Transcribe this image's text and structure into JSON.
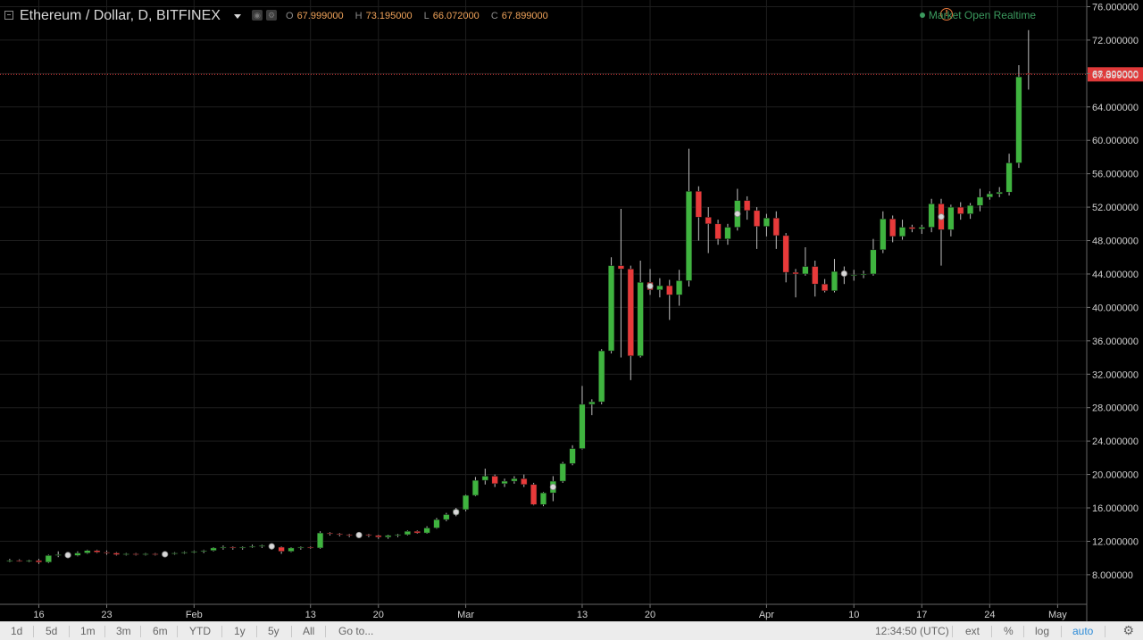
{
  "header": {
    "symbol": "Ethereum / Dollar, D, BITFINEX",
    "ohlc": [
      {
        "key": "O",
        "value": "67.999000"
      },
      {
        "key": "H",
        "value": "73.195000"
      },
      {
        "key": "L",
        "value": "66.072000"
      },
      {
        "key": "C",
        "value": "67.899000"
      }
    ],
    "warning": "!",
    "market_status": "Market Open",
    "realtime": "Realtime"
  },
  "colors": {
    "background": "#000000",
    "up": "#3fb43f",
    "down": "#e83a3a",
    "grid": "#1e1e1e",
    "axis_text": "#d0d0d0",
    "price_line": "#e03a3a",
    "wick": "#bfbfbf"
  },
  "icons": [
    "collapse-icon",
    "camera-icon",
    "settings-icon",
    "warning-icon",
    "gear-icon"
  ],
  "chart_data": {
    "type": "candlestick",
    "y_ticks": [
      "8.000000",
      "12.000000",
      "16.000000",
      "20.000000",
      "24.000000",
      "28.000000",
      "32.000000",
      "36.000000",
      "40.000000",
      "44.000000",
      "48.000000",
      "52.000000",
      "56.000000",
      "60.000000",
      "64.000000",
      "68.000000",
      "72.000000",
      "76.000000"
    ],
    "ylim": [
      4.46,
      76.8
    ],
    "x_ticks": [
      {
        "label": "16",
        "date": "2017-01-16"
      },
      {
        "label": "23",
        "date": "2017-01-23"
      },
      {
        "label": "Feb",
        "date": "2017-02-01"
      },
      {
        "label": "13",
        "date": "2017-02-13"
      },
      {
        "label": "20",
        "date": "2017-02-20"
      },
      {
        "label": "Mar",
        "date": "2017-03-01"
      },
      {
        "label": "13",
        "date": "2017-03-13"
      },
      {
        "label": "20",
        "date": "2017-03-20"
      },
      {
        "label": "Apr",
        "date": "2017-04-01"
      },
      {
        "label": "10",
        "date": "2017-04-10"
      },
      {
        "label": "17",
        "date": "2017-04-17"
      },
      {
        "label": "24",
        "date": "2017-04-24"
      },
      {
        "label": "May",
        "date": "2017-05-01"
      }
    ],
    "xlim": [
      "2017-01-12",
      "2017-05-04"
    ],
    "last_price": {
      "value": 67.899,
      "label": "67.899000"
    },
    "series": [
      {
        "date": "2017-01-13",
        "o": 9.6,
        "h": 9.9,
        "l": 9.5,
        "c": 9.7
      },
      {
        "date": "2017-01-14",
        "o": 9.7,
        "h": 9.85,
        "l": 9.55,
        "c": 9.6
      },
      {
        "date": "2017-01-15",
        "o": 9.6,
        "h": 9.8,
        "l": 9.5,
        "c": 9.7
      },
      {
        "date": "2017-01-16",
        "o": 9.7,
        "h": 9.9,
        "l": 9.3,
        "c": 9.5
      },
      {
        "date": "2017-01-17",
        "o": 9.5,
        "h": 10.4,
        "l": 9.4,
        "c": 10.3
      },
      {
        "date": "2017-01-18",
        "o": 10.3,
        "h": 10.8,
        "l": 10.1,
        "c": 10.4
      },
      {
        "date": "2017-01-19",
        "o": 10.4,
        "h": 10.6,
        "l": 10.1,
        "c": 10.3
      },
      {
        "date": "2017-01-20",
        "o": 10.3,
        "h": 10.8,
        "l": 10.2,
        "c": 10.6
      },
      {
        "date": "2017-01-21",
        "o": 10.6,
        "h": 11.0,
        "l": 10.5,
        "c": 10.9
      },
      {
        "date": "2017-01-22",
        "o": 10.9,
        "h": 11.0,
        "l": 10.6,
        "c": 10.7
      },
      {
        "date": "2017-01-23",
        "o": 10.7,
        "h": 10.9,
        "l": 10.4,
        "c": 10.6
      },
      {
        "date": "2017-01-24",
        "o": 10.6,
        "h": 10.7,
        "l": 10.3,
        "c": 10.4
      },
      {
        "date": "2017-01-25",
        "o": 10.4,
        "h": 10.6,
        "l": 10.3,
        "c": 10.5
      },
      {
        "date": "2017-01-26",
        "o": 10.5,
        "h": 10.6,
        "l": 10.3,
        "c": 10.4
      },
      {
        "date": "2017-01-27",
        "o": 10.4,
        "h": 10.6,
        "l": 10.3,
        "c": 10.5
      },
      {
        "date": "2017-01-28",
        "o": 10.5,
        "h": 10.6,
        "l": 10.3,
        "c": 10.4
      },
      {
        "date": "2017-01-29",
        "o": 10.4,
        "h": 10.6,
        "l": 10.3,
        "c": 10.5
      },
      {
        "date": "2017-01-30",
        "o": 10.5,
        "h": 10.7,
        "l": 10.4,
        "c": 10.6
      },
      {
        "date": "2017-01-31",
        "o": 10.6,
        "h": 10.8,
        "l": 10.5,
        "c": 10.7
      },
      {
        "date": "2017-02-01",
        "o": 10.7,
        "h": 10.9,
        "l": 10.6,
        "c": 10.8
      },
      {
        "date": "2017-02-02",
        "o": 10.8,
        "h": 11.0,
        "l": 10.6,
        "c": 10.9
      },
      {
        "date": "2017-02-03",
        "o": 10.9,
        "h": 11.3,
        "l": 10.8,
        "c": 11.2
      },
      {
        "date": "2017-02-04",
        "o": 11.2,
        "h": 11.5,
        "l": 11.0,
        "c": 11.3
      },
      {
        "date": "2017-02-05",
        "o": 11.3,
        "h": 11.4,
        "l": 11.0,
        "c": 11.2
      },
      {
        "date": "2017-02-06",
        "o": 11.2,
        "h": 11.4,
        "l": 11.0,
        "c": 11.3
      },
      {
        "date": "2017-02-07",
        "o": 11.3,
        "h": 11.6,
        "l": 11.2,
        "c": 11.4
      },
      {
        "date": "2017-02-08",
        "o": 11.4,
        "h": 11.6,
        "l": 11.2,
        "c": 11.5
      },
      {
        "date": "2017-02-09",
        "o": 11.5,
        "h": 11.7,
        "l": 11.0,
        "c": 11.3
      },
      {
        "date": "2017-02-10",
        "o": 11.3,
        "h": 11.4,
        "l": 10.5,
        "c": 10.8
      },
      {
        "date": "2017-02-11",
        "o": 10.8,
        "h": 11.3,
        "l": 10.7,
        "c": 11.2
      },
      {
        "date": "2017-02-12",
        "o": 11.2,
        "h": 11.4,
        "l": 11.0,
        "c": 11.3
      },
      {
        "date": "2017-02-13",
        "o": 11.3,
        "h": 11.4,
        "l": 11.1,
        "c": 11.2
      },
      {
        "date": "2017-02-14",
        "o": 11.2,
        "h": 13.2,
        "l": 11.1,
        "c": 13.0
      },
      {
        "date": "2017-02-15",
        "o": 13.0,
        "h": 13.1,
        "l": 12.7,
        "c": 12.9
      },
      {
        "date": "2017-02-16",
        "o": 12.9,
        "h": 13.0,
        "l": 12.6,
        "c": 12.8
      },
      {
        "date": "2017-02-17",
        "o": 12.8,
        "h": 12.9,
        "l": 12.5,
        "c": 12.7
      },
      {
        "date": "2017-02-18",
        "o": 12.7,
        "h": 12.9,
        "l": 12.6,
        "c": 12.8
      },
      {
        "date": "2017-02-19",
        "o": 12.8,
        "h": 12.9,
        "l": 12.5,
        "c": 12.7
      },
      {
        "date": "2017-02-20",
        "o": 12.7,
        "h": 12.8,
        "l": 12.3,
        "c": 12.5
      },
      {
        "date": "2017-02-21",
        "o": 12.5,
        "h": 12.8,
        "l": 12.3,
        "c": 12.7
      },
      {
        "date": "2017-02-22",
        "o": 12.7,
        "h": 12.9,
        "l": 12.5,
        "c": 12.8
      },
      {
        "date": "2017-02-23",
        "o": 12.8,
        "h": 13.3,
        "l": 12.7,
        "c": 13.2
      },
      {
        "date": "2017-02-24",
        "o": 13.2,
        "h": 13.3,
        "l": 12.9,
        "c": 13.0
      },
      {
        "date": "2017-02-25",
        "o": 13.0,
        "h": 13.8,
        "l": 12.9,
        "c": 13.6
      },
      {
        "date": "2017-02-26",
        "o": 13.6,
        "h": 14.8,
        "l": 13.5,
        "c": 14.6
      },
      {
        "date": "2017-02-27",
        "o": 14.6,
        "h": 15.4,
        "l": 14.4,
        "c": 15.2
      },
      {
        "date": "2017-02-28",
        "o": 15.2,
        "h": 16.0,
        "l": 15.0,
        "c": 15.8
      },
      {
        "date": "2017-03-01",
        "o": 15.8,
        "h": 17.6,
        "l": 15.6,
        "c": 17.5
      },
      {
        "date": "2017-03-02",
        "o": 17.5,
        "h": 19.7,
        "l": 17.4,
        "c": 19.3
      },
      {
        "date": "2017-03-03",
        "o": 19.3,
        "h": 20.7,
        "l": 18.8,
        "c": 19.8
      },
      {
        "date": "2017-03-04",
        "o": 19.8,
        "h": 20.0,
        "l": 18.5,
        "c": 18.9
      },
      {
        "date": "2017-03-05",
        "o": 18.9,
        "h": 19.5,
        "l": 18.5,
        "c": 19.2
      },
      {
        "date": "2017-03-06",
        "o": 19.2,
        "h": 19.8,
        "l": 18.9,
        "c": 19.5
      },
      {
        "date": "2017-03-07",
        "o": 19.5,
        "h": 20.0,
        "l": 18.5,
        "c": 18.8
      },
      {
        "date": "2017-03-08",
        "o": 18.8,
        "h": 19.0,
        "l": 16.3,
        "c": 16.4
      },
      {
        "date": "2017-03-09",
        "o": 16.4,
        "h": 17.9,
        "l": 16.2,
        "c": 17.8
      },
      {
        "date": "2017-03-10",
        "o": 17.8,
        "h": 19.8,
        "l": 16.8,
        "c": 19.2
      },
      {
        "date": "2017-03-11",
        "o": 19.2,
        "h": 21.5,
        "l": 19.0,
        "c": 21.3
      },
      {
        "date": "2017-03-12",
        "o": 21.3,
        "h": 23.5,
        "l": 21.1,
        "c": 23.1
      },
      {
        "date": "2017-03-13",
        "o": 23.1,
        "h": 30.6,
        "l": 23.0,
        "c": 28.4
      },
      {
        "date": "2017-03-14",
        "o": 28.4,
        "h": 29.0,
        "l": 27.1,
        "c": 28.7
      },
      {
        "date": "2017-03-15",
        "o": 28.7,
        "h": 35.0,
        "l": 28.4,
        "c": 34.8
      },
      {
        "date": "2017-03-16",
        "o": 34.8,
        "h": 46.0,
        "l": 34.5,
        "c": 45.0
      },
      {
        "date": "2017-03-17",
        "o": 45.0,
        "h": 51.8,
        "l": 34.0,
        "c": 44.6
      },
      {
        "date": "2017-03-18",
        "o": 44.6,
        "h": 45.0,
        "l": 31.3,
        "c": 34.2
      },
      {
        "date": "2017-03-19",
        "o": 34.2,
        "h": 45.6,
        "l": 34.0,
        "c": 43.0
      },
      {
        "date": "2017-03-20",
        "o": 43.0,
        "h": 44.6,
        "l": 41.5,
        "c": 42.1
      },
      {
        "date": "2017-03-21",
        "o": 42.1,
        "h": 43.5,
        "l": 41.2,
        "c": 42.6
      },
      {
        "date": "2017-03-22",
        "o": 42.6,
        "h": 43.3,
        "l": 38.5,
        "c": 41.5
      },
      {
        "date": "2017-03-23",
        "o": 41.5,
        "h": 44.5,
        "l": 40.2,
        "c": 43.2
      },
      {
        "date": "2017-03-24",
        "o": 43.2,
        "h": 59.0,
        "l": 42.5,
        "c": 53.9
      },
      {
        "date": "2017-03-25",
        "o": 53.9,
        "h": 54.5,
        "l": 48.0,
        "c": 50.8
      },
      {
        "date": "2017-03-26",
        "o": 50.8,
        "h": 52.0,
        "l": 46.5,
        "c": 50.0
      },
      {
        "date": "2017-03-27",
        "o": 50.0,
        "h": 50.5,
        "l": 47.5,
        "c": 48.2
      },
      {
        "date": "2017-03-28",
        "o": 48.2,
        "h": 50.0,
        "l": 47.5,
        "c": 49.6
      },
      {
        "date": "2017-03-29",
        "o": 49.6,
        "h": 54.2,
        "l": 49.2,
        "c": 52.8
      },
      {
        "date": "2017-03-30",
        "o": 52.8,
        "h": 53.3,
        "l": 50.5,
        "c": 51.6
      },
      {
        "date": "2017-03-31",
        "o": 51.6,
        "h": 52.0,
        "l": 47.0,
        "c": 49.7
      },
      {
        "date": "2017-04-01",
        "o": 49.7,
        "h": 51.2,
        "l": 48.5,
        "c": 50.7
      },
      {
        "date": "2017-04-02",
        "o": 50.7,
        "h": 51.5,
        "l": 47.0,
        "c": 48.6
      },
      {
        "date": "2017-04-03",
        "o": 48.6,
        "h": 48.9,
        "l": 43.0,
        "c": 44.2
      },
      {
        "date": "2017-04-04",
        "o": 44.2,
        "h": 44.6,
        "l": 41.2,
        "c": 44.0
      },
      {
        "date": "2017-04-05",
        "o": 44.0,
        "h": 47.2,
        "l": 43.8,
        "c": 44.9
      },
      {
        "date": "2017-04-06",
        "o": 44.9,
        "h": 45.6,
        "l": 41.3,
        "c": 42.8
      },
      {
        "date": "2017-04-07",
        "o": 42.8,
        "h": 43.4,
        "l": 41.8,
        "c": 42.0
      },
      {
        "date": "2017-04-08",
        "o": 42.0,
        "h": 45.8,
        "l": 41.8,
        "c": 44.3
      },
      {
        "date": "2017-04-09",
        "o": 44.3,
        "h": 44.9,
        "l": 42.8,
        "c": 43.8
      },
      {
        "date": "2017-04-10",
        "o": 43.8,
        "h": 44.5,
        "l": 43.2,
        "c": 43.9
      },
      {
        "date": "2017-04-11",
        "o": 43.9,
        "h": 44.4,
        "l": 43.5,
        "c": 44.0
      },
      {
        "date": "2017-04-12",
        "o": 44.0,
        "h": 48.2,
        "l": 43.8,
        "c": 46.9
      },
      {
        "date": "2017-04-13",
        "o": 46.9,
        "h": 51.5,
        "l": 46.5,
        "c": 50.6
      },
      {
        "date": "2017-04-14",
        "o": 50.6,
        "h": 51.0,
        "l": 47.8,
        "c": 48.5
      },
      {
        "date": "2017-04-15",
        "o": 48.5,
        "h": 50.5,
        "l": 48.1,
        "c": 49.6
      },
      {
        "date": "2017-04-16",
        "o": 49.6,
        "h": 49.9,
        "l": 49.0,
        "c": 49.4
      },
      {
        "date": "2017-04-17",
        "o": 49.4,
        "h": 49.9,
        "l": 48.8,
        "c": 49.6
      },
      {
        "date": "2017-04-18",
        "o": 49.6,
        "h": 53.0,
        "l": 49.0,
        "c": 52.4
      },
      {
        "date": "2017-04-19",
        "o": 52.4,
        "h": 53.0,
        "l": 45.0,
        "c": 49.3
      },
      {
        "date": "2017-04-20",
        "o": 49.3,
        "h": 52.3,
        "l": 48.5,
        "c": 52.0
      },
      {
        "date": "2017-04-21",
        "o": 52.0,
        "h": 52.6,
        "l": 50.5,
        "c": 51.2
      },
      {
        "date": "2017-04-22",
        "o": 51.2,
        "h": 52.5,
        "l": 50.6,
        "c": 52.2
      },
      {
        "date": "2017-04-23",
        "o": 52.2,
        "h": 54.2,
        "l": 51.5,
        "c": 53.2
      },
      {
        "date": "2017-04-24",
        "o": 53.2,
        "h": 53.9,
        "l": 52.9,
        "c": 53.6
      },
      {
        "date": "2017-04-25",
        "o": 53.6,
        "h": 54.4,
        "l": 53.2,
        "c": 53.8
      },
      {
        "date": "2017-04-26",
        "o": 53.8,
        "h": 58.4,
        "l": 53.4,
        "c": 57.3
      },
      {
        "date": "2017-04-27",
        "o": 57.3,
        "h": 69.0,
        "l": 56.7,
        "c": 67.6
      },
      {
        "date": "2017-04-28",
        "o": 67.999,
        "h": 73.195,
        "l": 66.072,
        "c": 67.899
      }
    ],
    "markers": [
      "2017-01-19",
      "2017-01-29",
      "2017-02-09",
      "2017-02-18",
      "2017-02-28",
      "2017-03-10",
      "2017-03-20",
      "2017-03-29",
      "2017-04-09",
      "2017-04-19"
    ]
  },
  "bottom_bar": {
    "ranges": [
      "1d",
      "5d",
      "1m",
      "3m",
      "6m",
      "YTD",
      "1y",
      "5y",
      "All"
    ],
    "goto": "Go to...",
    "time": "12:34:50 (UTC)",
    "ext": "ext",
    "percent": "%",
    "log": "log",
    "auto": "auto"
  }
}
